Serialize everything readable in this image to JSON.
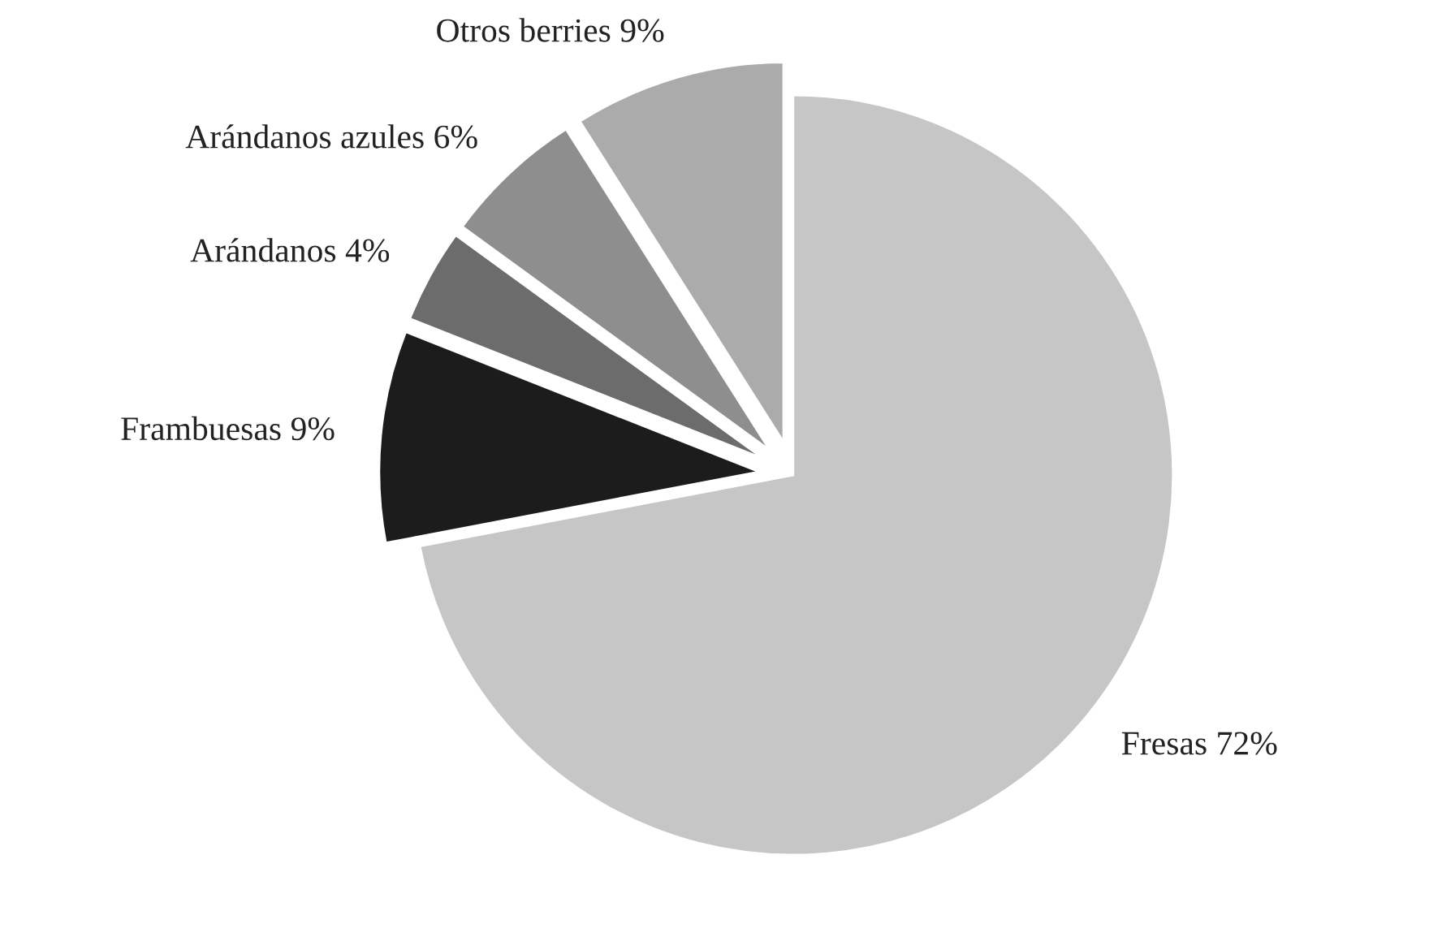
{
  "chart_data": {
    "type": "pie",
    "categories": [
      "Fresas",
      "Frambuesas",
      "Arándanos",
      "Arándanos azules",
      "Otros berries"
    ],
    "values": [
      72,
      9,
      4,
      6,
      9
    ],
    "value_labels": [
      "72%",
      "9%",
      "4%",
      "6%",
      "9%"
    ],
    "colors": [
      "#c6c6c6",
      "#1c1c1c",
      "#6c6c6c",
      "#8e8e8e",
      "#ababab"
    ],
    "legend": false
  }
}
